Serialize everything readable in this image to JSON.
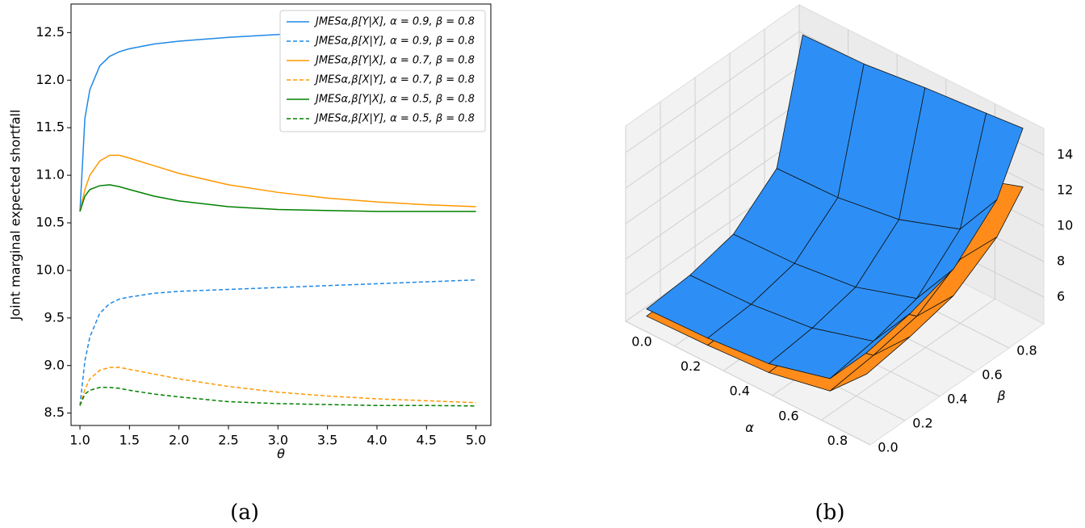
{
  "chart_data": [
    {
      "type": "line",
      "caption": "(a)",
      "xlabel": "θ",
      "ylabel": "Joint marginal expected shortfall",
      "x": [
        1.0,
        1.05,
        1.1,
        1.2,
        1.3,
        1.4,
        1.5,
        1.75,
        2.0,
        2.5,
        3.0,
        3.5,
        4.0,
        4.5,
        5.0
      ],
      "series": [
        {
          "name": "JMESα,β[Y|X], α = 0.9, β = 0.8",
          "color": "#1e88e5",
          "linestyle": "solid",
          "values": [
            10.62,
            11.6,
            11.9,
            12.15,
            12.25,
            12.3,
            12.33,
            12.38,
            12.41,
            12.45,
            12.48,
            12.51,
            12.53,
            12.56,
            12.58
          ]
        },
        {
          "name": "JMESα,β[X|Y], α = 0.9, β = 0.8",
          "color": "#1e88e5",
          "linestyle": "dashed",
          "values": [
            8.58,
            9.05,
            9.3,
            9.55,
            9.65,
            9.7,
            9.72,
            9.76,
            9.78,
            9.8,
            9.82,
            9.84,
            9.86,
            9.88,
            9.9
          ]
        },
        {
          "name": "JMESα,β[Y|X], α = 0.7, β = 0.8",
          "color": "#ff9800",
          "linestyle": "solid",
          "values": [
            10.62,
            10.85,
            11.0,
            11.15,
            11.21,
            11.21,
            11.18,
            11.1,
            11.02,
            10.9,
            10.82,
            10.76,
            10.72,
            10.69,
            10.67
          ]
        },
        {
          "name": "JMESα,β[X|Y], α = 0.7, β = 0.8",
          "color": "#ff9800",
          "linestyle": "dashed",
          "values": [
            8.58,
            8.75,
            8.86,
            8.95,
            8.98,
            8.98,
            8.96,
            8.91,
            8.86,
            8.78,
            8.72,
            8.68,
            8.65,
            8.63,
            8.61
          ]
        },
        {
          "name": "JMESα,β[Y|X], α = 0.5, β = 0.8",
          "color": "#008000",
          "linestyle": "solid",
          "values": [
            10.62,
            10.78,
            10.85,
            10.89,
            10.9,
            10.88,
            10.85,
            10.78,
            10.73,
            10.67,
            10.64,
            10.63,
            10.62,
            10.62,
            10.62
          ]
        },
        {
          "name": "JMESα,β[X|Y], α = 0.5, β = 0.8",
          "color": "#008000",
          "linestyle": "dashed",
          "values": [
            8.58,
            8.7,
            8.74,
            8.77,
            8.77,
            8.76,
            8.74,
            8.7,
            8.67,
            8.62,
            8.6,
            8.59,
            8.58,
            8.58,
            8.575
          ]
        }
      ],
      "xlim": [
        0.91,
        5.15
      ],
      "ylim": [
        8.37,
        12.8
      ],
      "xticks": [
        {
          "value": 1,
          "label": "1.0"
        },
        1.5,
        {
          "value": 2,
          "label": "2.0"
        },
        2.5,
        {
          "value": 3,
          "label": "3.0"
        },
        3.5,
        {
          "value": 4,
          "label": "4.0"
        },
        4.5,
        {
          "value": 5,
          "label": "5.0"
        }
      ],
      "yticks": [
        8.5,
        {
          "value": 9,
          "label": "9.0"
        },
        9.5,
        {
          "value": 10,
          "label": "10.0"
        },
        10.5,
        {
          "value": 11,
          "label": "11.0"
        },
        11.5,
        {
          "value": 12,
          "label": "12.0"
        },
        12.5
      ],
      "legend": "upper right"
    },
    {
      "type": "surface",
      "caption": "(b)",
      "xlabel": "α",
      "ylabel": "β",
      "x": [
        0.05,
        0.3,
        0.55,
        0.8,
        0.95
      ],
      "y": [
        0.05,
        0.3,
        0.55,
        0.8,
        0.95
      ],
      "xlim": [
        0,
        1
      ],
      "ylim": [
        0,
        1
      ],
      "zlim": [
        4.5,
        15.5
      ],
      "xticks": [
        {
          "value": 0,
          "label": "0.0"
        },
        0.2,
        0.4,
        0.6,
        0.8
      ],
      "yticks": [
        {
          "value": 0,
          "label": "0.0"
        },
        0.2,
        0.4,
        0.6,
        0.8
      ],
      "zticks": [
        6,
        8,
        10,
        12,
        14
      ],
      "surfaces": [
        {
          "color": "#ff8c1a",
          "z": [
            [
              4.8,
              4.9,
              5.1,
              5.8,
              7.8
            ],
            [
              4.9,
              5.0,
              5.3,
              6.1,
              8.2
            ],
            [
              5.3,
              5.4,
              5.7,
              6.6,
              8.8
            ],
            [
              6.6,
              6.7,
              7.1,
              8.1,
              10.4
            ],
            [
              10.5,
              10.6,
              10.9,
              11.5,
              12.2
            ]
          ]
        },
        {
          "color": "#2d8ff5",
          "z": [
            [
              5.2,
              5.3,
              5.6,
              6.5,
              9.0
            ],
            [
              5.4,
              5.5,
              5.9,
              6.9,
              9.5
            ],
            [
              6.0,
              6.1,
              6.5,
              7.6,
              10.3
            ],
            [
              8.0,
              8.1,
              8.6,
              9.8,
              12.5
            ],
            [
              14.5,
              14.6,
              15.0,
              15.3,
              15.5
            ]
          ]
        }
      ]
    }
  ]
}
